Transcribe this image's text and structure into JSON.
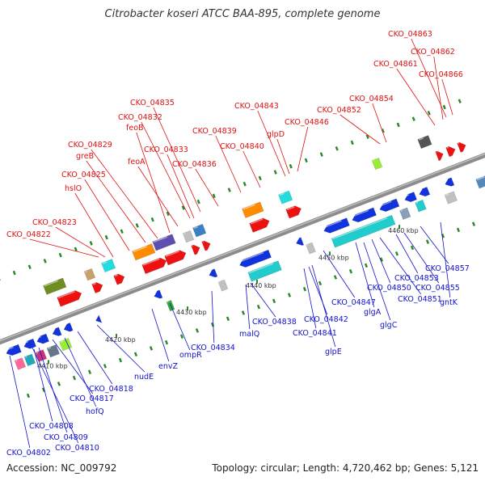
{
  "header": {
    "title": "Citrobacter koseri ATCC BAA-895, complete genome"
  },
  "footer": {
    "accession": "Accession: NC_009792",
    "summary": "Topology: circular; Length: 4,720,462 bp; Genes: 5,121"
  },
  "scale_labels": [
    "4410 kbp",
    "4420 kbp",
    "4430 kbp",
    "4440 kbp",
    "4450 kbp",
    "4460 kbp"
  ],
  "colors": {
    "forward_label": "#dd1111",
    "reverse_label": "#1111cc",
    "forward_gene": "#ee1111",
    "reverse_gene": "#1133dd"
  },
  "forward_labels": [
    "CKO_04822",
    "CKO_04823",
    "hslO",
    "CKO_04825",
    "greB",
    "CKO_04829",
    "feoA",
    "feoB",
    "CKO_04832",
    "CKO_04833",
    "CKO_04835",
    "CKO_04836",
    "CKO_04839",
    "CKO_04840",
    "CKO_04843",
    "glpD",
    "CKO_04846",
    "CKO_04852",
    "CKO_04854",
    "CKO_04861",
    "CKO_04862",
    "CKO_04863",
    "CKO_04866"
  ],
  "reverse_labels": [
    "CKO_04802",
    "CKO_04810",
    "CKO_04809",
    "CKO_04808",
    "CKO_04817",
    "hofQ",
    "CKO_04818",
    "nudE",
    "envZ",
    "ompR",
    "CKO_04834",
    "malQ",
    "CKO_04838",
    "CKO_04841",
    "CKO_04842",
    "glpE",
    "glgA",
    "CKO_04847",
    "glgC",
    "CKO_04850",
    "CKO_04851",
    "CKO_04853",
    "CKO_04855",
    "CKO_04857",
    "gntK"
  ]
}
